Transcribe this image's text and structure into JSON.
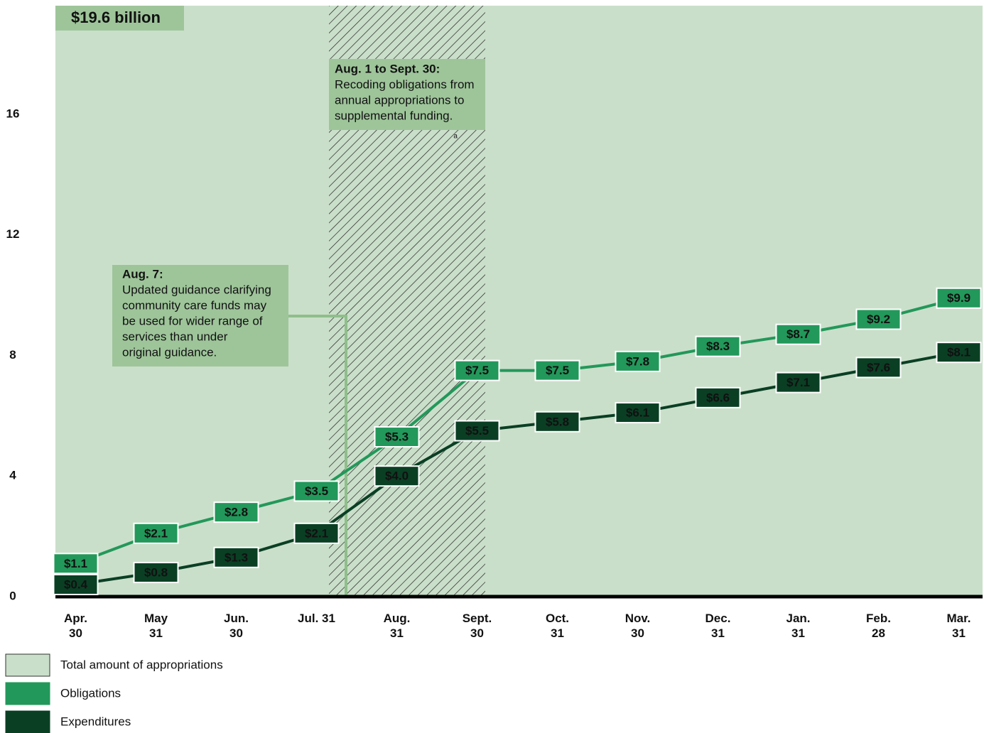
{
  "chart_data": {
    "type": "line",
    "categories": [
      "Apr. 30",
      "May 31",
      "Jun. 30",
      "Jul. 31",
      "Aug. 31",
      "Sept. 30",
      "Oct. 31",
      "Nov. 30",
      "Dec. 31",
      "Jan. 31",
      "Feb. 28",
      "Mar. 31"
    ],
    "ylim": [
      0,
      19.6
    ],
    "yticks": [
      0,
      4,
      8,
      12,
      16
    ],
    "area": {
      "name": "Total amount of appropriations",
      "color": "#cadfca",
      "value": 19.6,
      "label": "$19.6 billion"
    },
    "series": [
      {
        "name": "Obligations",
        "color": "#22985a",
        "values": [
          1.1,
          2.1,
          2.8,
          3.5,
          5.3,
          7.5,
          7.5,
          7.8,
          8.3,
          8.7,
          9.2,
          9.9
        ],
        "value_labels": [
          "$1.1",
          "$2.1",
          "$2.8",
          "$3.5",
          "$5.3",
          "$7.5",
          "$7.5",
          "$7.8",
          "$8.3",
          "$8.7",
          "$9.2",
          "$9.9"
        ]
      },
      {
        "name": "Expenditures",
        "color": "#0a3f24",
        "values": [
          0.4,
          0.8,
          1.3,
          2.1,
          4.0,
          5.5,
          5.8,
          6.1,
          6.6,
          7.1,
          7.6,
          8.1
        ],
        "value_labels": [
          "$0.4",
          "$0.8",
          "$1.3",
          "$2.1",
          "$4.0",
          "$5.5",
          "$5.8",
          "$6.1",
          "$6.6",
          "$7.1",
          "$7.6",
          "$8.1"
        ]
      }
    ],
    "annotations": [
      {
        "title": "Aug. 1 to Sept. 30:",
        "lines": [
          "Recoding obligations from",
          "annual appropriations to",
          "supplemental funding."
        ],
        "marker": "a"
      },
      {
        "title": "Aug. 7:",
        "lines": [
          "Updated guidance clarifying",
          "community care funds may",
          "be used for wider range of",
          "services than under",
          "original guidance."
        ]
      }
    ]
  }
}
